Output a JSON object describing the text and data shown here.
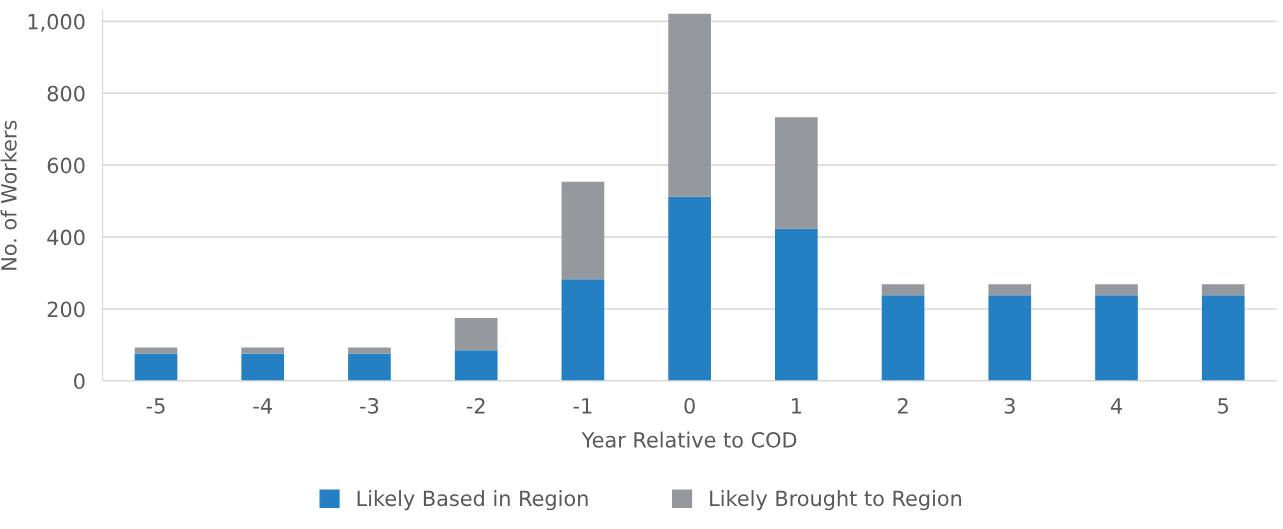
{
  "chart_data": {
    "type": "bar",
    "stacked": true,
    "xlabel": "Year Relative to COD",
    "ylabel": "No. of Workers",
    "categories": [
      "-5",
      "-4",
      "-3",
      "-2",
      "-1",
      "0",
      "1",
      "2",
      "3",
      "4",
      "5"
    ],
    "series": [
      {
        "name": "Likely Based in Region",
        "color": "#2580c3",
        "values": [
          76,
          76,
          76,
          85,
          283,
          512,
          423,
          238,
          238,
          238,
          238
        ]
      },
      {
        "name": "Likely Brought to Region",
        "color": "#95989c",
        "values": [
          17,
          17,
          17,
          90,
          271,
          509,
          310,
          31,
          31,
          31,
          31
        ]
      }
    ],
    "ylim": [
      0,
      1030
    ],
    "yticks": [
      0,
      200,
      400,
      600,
      800,
      {
        "value": 1000,
        "label": "1,000"
      }
    ],
    "grid": "y",
    "legend": "bottom"
  }
}
